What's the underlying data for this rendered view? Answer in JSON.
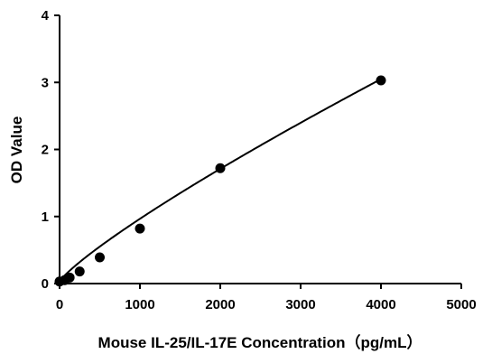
{
  "chart_data": {
    "type": "scatter",
    "title": "",
    "xlabel": "Mouse IL-25/IL-17E Concentration（pg/mL）",
    "ylabel": "OD Value",
    "xlim": [
      0,
      5000
    ],
    "ylim": [
      0,
      4
    ],
    "xticks": [
      0,
      1000,
      2000,
      3000,
      4000,
      5000
    ],
    "yticks": [
      0,
      1,
      2,
      3,
      4
    ],
    "xtick_labels": [
      "0",
      "1000",
      "2000",
      "3000",
      "4000",
      "5000"
    ],
    "ytick_labels": [
      "0",
      "1",
      "2",
      "3",
      "4"
    ],
    "grid": false,
    "legend": "none",
    "series": [
      {
        "points": [
          {
            "x": 0,
            "y": 0.03
          },
          {
            "x": 62.5,
            "y": 0.05
          },
          {
            "x": 125,
            "y": 0.09
          },
          {
            "x": 250,
            "y": 0.18
          },
          {
            "x": 500,
            "y": 0.39
          },
          {
            "x": 1000,
            "y": 0.82
          },
          {
            "x": 2000,
            "y": 1.72
          },
          {
            "x": 4000,
            "y": 3.03
          }
        ],
        "fit_curve": {
          "type": "power",
          "a": 0.00273,
          "b": 0.845,
          "x_range": [
            0,
            4000
          ]
        },
        "color": "#000000"
      }
    ]
  }
}
